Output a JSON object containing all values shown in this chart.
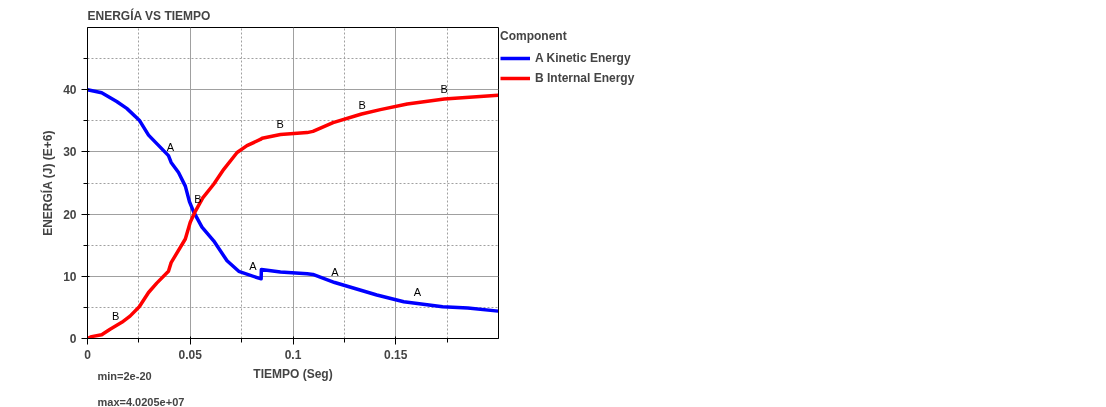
{
  "chart_data": {
    "type": "line",
    "title": "ENERGÍA VS TIEMPO",
    "xlabel": "TIEMPO (Seg)",
    "ylabel": "ENERGÍA (J) (E+6)",
    "legend_title": "Component",
    "xlim": [
      0,
      0.2
    ],
    "ylim": [
      0,
      50
    ],
    "xticks": [
      0,
      {
        "value": 0.025,
        "label": null
      },
      0.05,
      {
        "value": 0.075,
        "label": null
      },
      0.1,
      {
        "value": 0.125,
        "label": null
      },
      0.15,
      {
        "value": 0.175,
        "label": null
      }
    ],
    "yticks": [
      0,
      {
        "value": 5,
        "label": null
      },
      10,
      {
        "value": 15,
        "label": null
      },
      20,
      {
        "value": 25,
        "label": null
      },
      30,
      {
        "value": 35,
        "label": null
      },
      40,
      {
        "value": 45,
        "label": null
      }
    ],
    "grid": true,
    "legend": "right",
    "marker": "none",
    "line_style": "solid",
    "series": [
      {
        "name": "A Kinetic Energy",
        "color": "#0000ff",
        "x": [
          0,
          0.0069,
          0.0142,
          0.0191,
          0.0252,
          0.0297,
          0.0394,
          0.0407,
          0.0443,
          0.0476,
          0.0496,
          0.0516,
          0.0557,
          0.0614,
          0.0679,
          0.0736,
          0.0833,
          0.0845,
          0.0846,
          0.0939,
          0.1069,
          0.1097,
          0.1203,
          0.1408,
          0.1539,
          0.1728,
          0.1851,
          0.1998
        ],
        "values": [
          40.0,
          39.5,
          38.1,
          37.0,
          35.1,
          32.7,
          29.4,
          28.3,
          26.7,
          24.5,
          22.0,
          20.4,
          17.9,
          15.7,
          12.5,
          10.8,
          9.7,
          9.6,
          11.1,
          10.7,
          10.4,
          10.3,
          9.0,
          7.0,
          5.9,
          5.1,
          4.9,
          4.4
        ]
      },
      {
        "name": "B Internal Energy",
        "color": "#ff0000",
        "x": [
          0,
          0.002,
          0.0069,
          0.011,
          0.0167,
          0.0207,
          0.0252,
          0.0297,
          0.0337,
          0.0394,
          0.0407,
          0.0476,
          0.05,
          0.0524,
          0.0561,
          0.0614,
          0.0663,
          0.0728,
          0.0776,
          0.0841,
          0.085,
          0.0939,
          0.1069,
          0.1097,
          0.1195,
          0.1334,
          0.1425,
          0.1556,
          0.1736,
          0.1998
        ],
        "values": [
          0,
          0.3,
          0.6,
          1.5,
          2.6,
          3.6,
          5.1,
          7.4,
          8.9,
          10.8,
          12.2,
          16.0,
          18.7,
          20.4,
          22.6,
          24.8,
          27.2,
          29.9,
          31.0,
          32.0,
          32.2,
          32.8,
          33.1,
          33.3,
          34.7,
          36.1,
          36.8,
          37.7,
          38.5,
          39.1
        ]
      }
    ],
    "annotations": [
      {
        "text": "A",
        "x": 0.0404,
        "y": 29.8
      },
      {
        "text": "A",
        "x": 0.0805,
        "y": 10.7
      },
      {
        "text": "A",
        "x": 0.1204,
        "y": 9.8
      },
      {
        "text": "A",
        "x": 0.1605,
        "y": 6.5
      },
      {
        "text": "B",
        "x": 0.0137,
        "y": 2.6
      },
      {
        "text": "B",
        "x": 0.0537,
        "y": 21.5
      },
      {
        "text": "B",
        "x": 0.0937,
        "y": 33.5
      },
      {
        "text": "B",
        "x": 0.1336,
        "y": 36.5
      },
      {
        "text": "B",
        "x": 0.1736,
        "y": 39.1
      },
      "min=2e-20",
      "max=4.0205e+07"
    ]
  }
}
